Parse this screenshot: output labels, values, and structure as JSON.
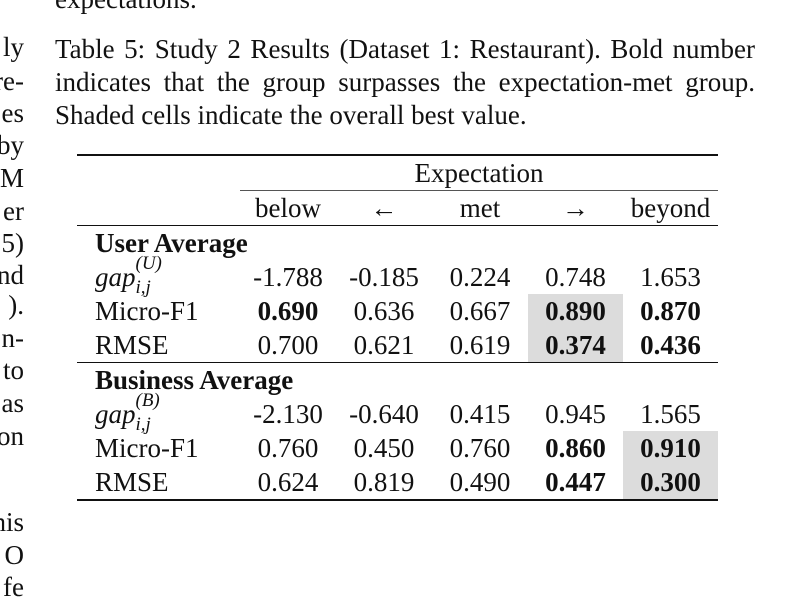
{
  "top_fragment": "expectations.",
  "left_fragments": [
    "ly",
    "re-",
    "es",
    "by",
    "M",
    "er",
    "5)",
    "nd",
    ").",
    "n-",
    "to",
    "as",
    "on",
    "",
    "his",
    "O",
    "fe"
  ],
  "caption": "Table 5: Study 2 Results (Dataset 1: Restaurant). Bold number indicates that the group surpasses the expectation-met group. Shaded cells indicate the overall best value.",
  "table": {
    "span_header": "Expectation",
    "sub_headers": [
      "below",
      "←",
      "met",
      "→",
      "beyond"
    ],
    "groups": [
      {
        "title": "User Average",
        "gap_symbol": "gap",
        "gap_sup": "(U)",
        "gap_sub": "i,j",
        "gap_values": [
          "-1.788",
          "-0.185",
          "0.224",
          "0.748",
          "1.653"
        ],
        "rows": [
          {
            "label": "Micro-F1",
            "values": [
              "0.690",
              "0.636",
              "0.667",
              "0.890",
              "0.870"
            ]
          },
          {
            "label": "RMSE",
            "values": [
              "0.700",
              "0.621",
              "0.619",
              "0.374",
              "0.436"
            ]
          }
        ]
      },
      {
        "title": "Business Average",
        "gap_symbol": "gap",
        "gap_sup": "(B)",
        "gap_sub": "i,j",
        "gap_values": [
          "-2.130",
          "-0.640",
          "0.415",
          "0.945",
          "1.565"
        ],
        "rows": [
          {
            "label": "Micro-F1",
            "values": [
              "0.760",
              "0.450",
              "0.760",
              "0.860",
              "0.910"
            ]
          },
          {
            "label": "RMSE",
            "values": [
              "0.624",
              "0.819",
              "0.490",
              "0.447",
              "0.300"
            ]
          }
        ]
      }
    ]
  }
}
